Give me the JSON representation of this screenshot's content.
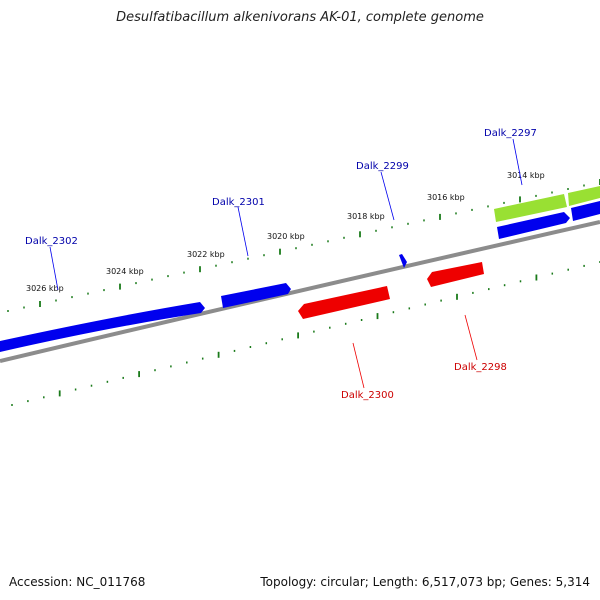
{
  "title": "Desulfatibacillum alkenivorans AK-01, complete genome",
  "footer": {
    "accession": "Accession: NC_011768",
    "info": "Topology: circular; Length: 6,517,073 bp; Genes: 5,314"
  },
  "colors": {
    "backbone": "#8c8c8c",
    "tick": "#1a7a1a",
    "forward_gene": "#0000ee",
    "reverse_gene": "#ee0000",
    "highlight_gene": "#99e033"
  },
  "scale": {
    "tick_labels": [
      "3014 kbp",
      "3016 kbp",
      "3018 kbp",
      "3020 kbp",
      "3022 kbp",
      "3024 kbp",
      "3026 kbp"
    ]
  },
  "genes": {
    "labels": [
      "Dalk_2297",
      "Dalk_2298",
      "Dalk_2299",
      "Dalk_2300",
      "Dalk_2301",
      "Dalk_2302"
    ]
  }
}
